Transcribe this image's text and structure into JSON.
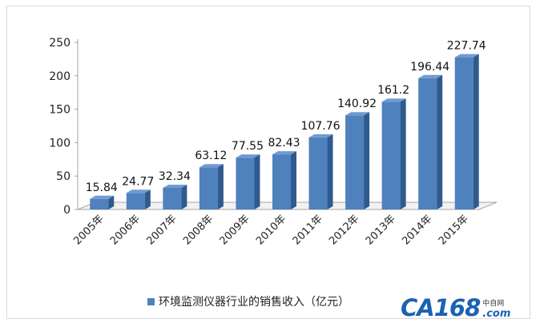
{
  "chart_data": {
    "type": "bar",
    "categories": [
      "2005年",
      "2006年",
      "2007年",
      "2008年",
      "2009年",
      "2010年",
      "2011年",
      "2012年",
      "2013年",
      "2014年",
      "2015年"
    ],
    "values": [
      15.84,
      24.77,
      32.34,
      63.12,
      77.55,
      82.43,
      107.76,
      140.92,
      161.2,
      196.44,
      227.74
    ],
    "data_labels": [
      "15.84",
      "24.77",
      "32.34",
      "63.12",
      "77.55",
      "82.43",
      "107.76",
      "140.92",
      "161.2",
      "196.44",
      "227.74"
    ],
    "series": [
      {
        "name": "环境监测仪器行业的销售收入（亿元）"
      }
    ],
    "yticks": [
      "0",
      "50",
      "100",
      "150",
      "200",
      "250"
    ],
    "ylim": [
      0,
      250
    ],
    "title": "",
    "xlabel": "",
    "ylabel": "",
    "legend_position": "bottom",
    "grid": false,
    "bar_color": "#4f81bd",
    "bar_side_color": "#2f5a8e",
    "bar_top_color": "#6f9bd2",
    "three_d": true
  },
  "watermark": {
    "logo_text": "CA168",
    "cn_text": "中自网",
    "domain_text": ".com"
  }
}
